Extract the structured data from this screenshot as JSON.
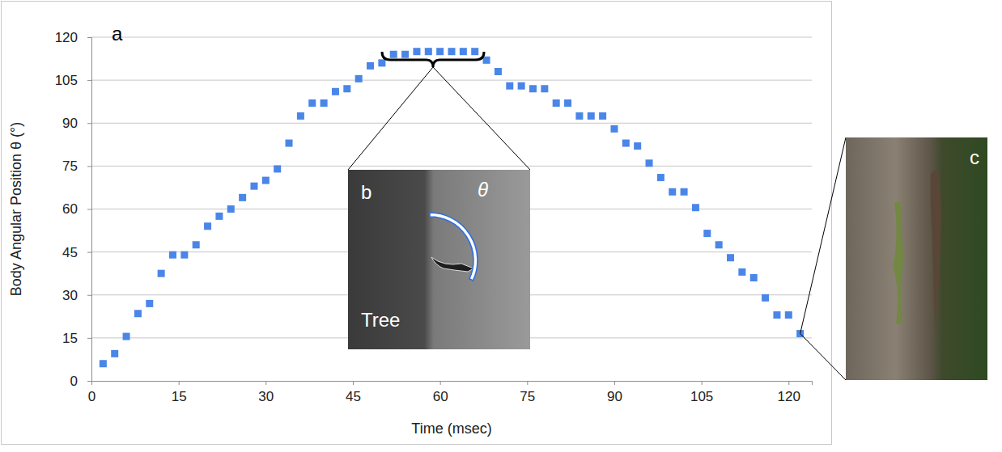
{
  "chart_data": {
    "type": "scatter",
    "xlabel": "Time (msec)",
    "ylabel": "Body Angular Position θ (°)",
    "x": [
      2,
      4,
      6,
      8,
      10,
      12,
      14,
      16,
      18,
      20,
      22,
      24,
      26,
      28,
      30,
      32,
      34,
      36,
      38,
      40,
      42,
      44,
      46,
      48,
      50,
      52,
      54,
      56,
      58,
      60,
      62,
      64,
      66,
      68,
      70,
      72,
      74,
      76,
      78,
      80,
      82,
      84,
      86,
      88,
      90,
      92,
      94,
      96,
      98,
      100,
      102,
      104,
      106,
      108,
      110,
      112,
      114,
      116,
      118,
      120,
      122
    ],
    "values": [
      6,
      9.5,
      15.5,
      23.5,
      27,
      37.5,
      44,
      44,
      47.5,
      54,
      57.5,
      60,
      64,
      68,
      70,
      74,
      83,
      92.5,
      97,
      97,
      101,
      102,
      105.5,
      110,
      111,
      114,
      114,
      115,
      115,
      115,
      115,
      115,
      115,
      112,
      108,
      103,
      103,
      102,
      102,
      97,
      97,
      92.5,
      92.5,
      92.5,
      88,
      83,
      82,
      76,
      71,
      66,
      66,
      60.5,
      51.5,
      47.5,
      43,
      38,
      36,
      29,
      23,
      23,
      16.5
    ],
    "color": "#4a86e8",
    "marker": "square",
    "xlim": [
      0,
      124
    ],
    "ylim": [
      0,
      120
    ],
    "xticks": [
      0,
      15,
      30,
      45,
      60,
      75,
      90,
      105,
      120
    ],
    "yticks": [
      0,
      15,
      30,
      45,
      60,
      75,
      90,
      105,
      120
    ],
    "grid": "y",
    "annotations": [
      {
        "text": "a"
      },
      {
        "text": "b"
      },
      {
        "text": "θ"
      },
      {
        "text": "Tree"
      },
      {
        "text": "c"
      }
    ]
  }
}
